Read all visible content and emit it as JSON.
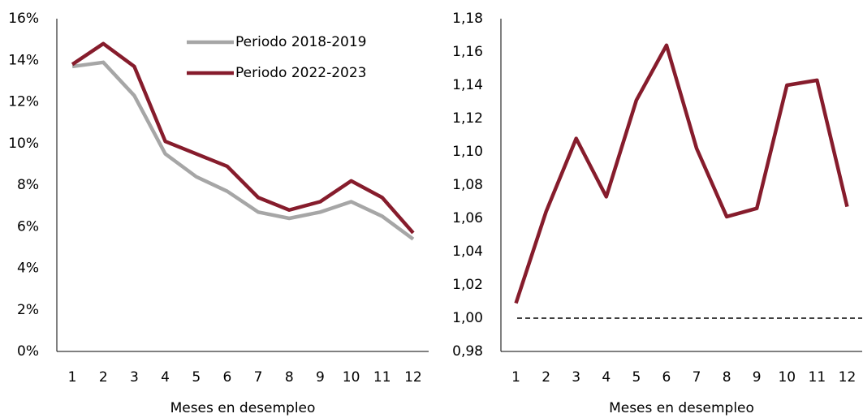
{
  "chart_data": [
    {
      "type": "line",
      "xlabel": "Meses en desempleo",
      "categories": [
        "1",
        "2",
        "3",
        "4",
        "5",
        "6",
        "7",
        "8",
        "9",
        "10",
        "11",
        "12"
      ],
      "series": [
        {
          "name": "Periodo 2018-2019",
          "color": "#a6a6a6",
          "values": [
            13.7,
            13.9,
            12.3,
            9.5,
            8.4,
            7.7,
            6.7,
            6.4,
            6.7,
            7.2,
            6.5,
            5.4
          ]
        },
        {
          "name": "Periodo 2022-2023",
          "color": "#861c2c",
          "values": [
            13.8,
            14.8,
            13.7,
            10.1,
            9.5,
            8.9,
            7.4,
            6.8,
            7.2,
            8.2,
            7.4,
            5.7
          ]
        }
      ],
      "ylim": [
        0,
        16
      ],
      "yticks": [
        {
          "value": 0,
          "label": "0%"
        },
        {
          "value": 2,
          "label": "2%"
        },
        {
          "value": 4,
          "label": "4%"
        },
        {
          "value": 6,
          "label": "6%"
        },
        {
          "value": 8,
          "label": "8%"
        },
        {
          "value": 10,
          "label": "10%"
        },
        {
          "value": 12,
          "label": "12%"
        },
        {
          "value": 14,
          "label": "14%"
        },
        {
          "value": 16,
          "label": "16%"
        }
      ],
      "legend": "top-right"
    },
    {
      "type": "line",
      "xlabel": "Meses en desempleo",
      "categories": [
        "1",
        "2",
        "3",
        "4",
        "5",
        "6",
        "7",
        "8",
        "9",
        "10",
        "11",
        "12"
      ],
      "series": [
        {
          "color": "#861c2c",
          "values": [
            1.009,
            1.064,
            1.108,
            1.073,
            1.131,
            1.164,
            1.102,
            1.061,
            1.066,
            1.14,
            1.143,
            1.067
          ]
        }
      ],
      "ylim": [
        0.98,
        1.18
      ],
      "yticks": [
        {
          "value": 0.98,
          "label": "0,98"
        },
        {
          "value": 1.0,
          "label": "1,00"
        },
        {
          "value": 1.02,
          "label": "1,02"
        },
        {
          "value": 1.04,
          "label": "1,04"
        },
        {
          "value": 1.06,
          "label": "1,06"
        },
        {
          "value": 1.08,
          "label": "1,08"
        },
        {
          "value": 1.1,
          "label": "1,10"
        },
        {
          "value": 1.12,
          "label": "1,12"
        },
        {
          "value": 1.14,
          "label": "1,14"
        },
        {
          "value": 1.16,
          "label": "1,16"
        },
        {
          "value": 1.18,
          "label": "1,18"
        }
      ],
      "hline": 1.0
    }
  ]
}
